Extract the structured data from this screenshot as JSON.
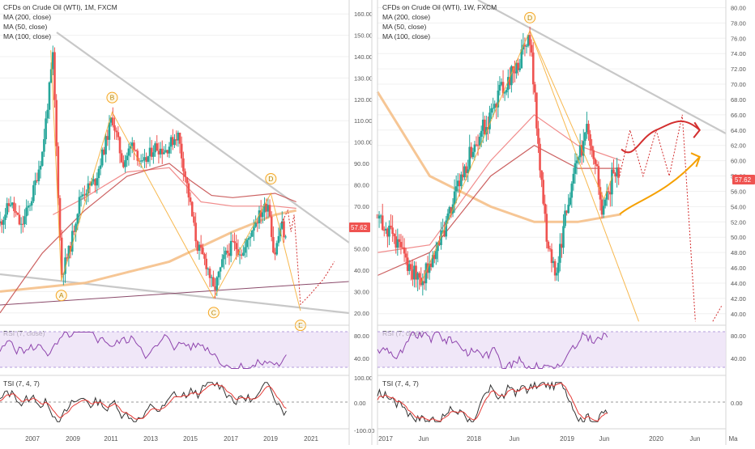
{
  "colors": {
    "bull": "#26a69a",
    "bear": "#ef5350",
    "ma200": "#f5c08a",
    "ma50": "#f08080",
    "ma100": "#c75050",
    "trend": "#c8c8c8",
    "wave": "#f5a623",
    "rsi": "#8e44ad",
    "rsi_band": "#e9ddf5",
    "tsi": "#333333",
    "tsi_signal": "#e53935",
    "price_badge": "#ef5350",
    "proj_red": "#d32f2f",
    "proj_orange": "#f5a000",
    "axis_text": "#555555",
    "grid": "#f0f0f0"
  },
  "left_panel": {
    "legend": {
      "title": "CFDs on Crude Oil (WTI), 1M, FXCM",
      "ma1": "MA (200, close)",
      "ma2": "MA (50, close)",
      "ma3": "MA (100, close)"
    },
    "rsi_label": "RSI (7, close)",
    "tsi_label": "TSI (7, 4, 7)",
    "price_badge": "57.62"
  },
  "right_panel": {
    "legend": {
      "title": "CFDs on Crude Oil (WTI), 1W, FXCM",
      "ma1": "MA (200, close)",
      "ma2": "MA (50, close)",
      "ma3": "MA (100, close)"
    },
    "rsi_label": "RSI (7, close)",
    "tsi_label": "TSI (7, 4, 7)",
    "price_badge": "57.62"
  },
  "chart_data": [
    {
      "type": "candlestick",
      "title": "CFDs on Crude Oil (WTI), 1M, FXCM",
      "ylim": [
        15,
        165
      ],
      "y_ticks": [
        "20.00",
        "30.00",
        "40.00",
        "50.00",
        "60.00",
        "70.00",
        "80.00",
        "90.00",
        "100.00",
        "110.00",
        "120.00",
        "130.00",
        "140.00",
        "150.00",
        "160.00"
      ],
      "x_ticks": [
        "2007",
        "2009",
        "2011",
        "2013",
        "2015",
        "2017",
        "2019",
        "2021"
      ],
      "x_range": [
        2006.0,
        2022.5
      ],
      "wave_points": [
        {
          "label": "A",
          "x": 2008.9,
          "y": 35
        },
        {
          "label": "B",
          "x": 2011.3,
          "y": 114
        },
        {
          "label": "C",
          "x": 2016.1,
          "y": 27
        },
        {
          "label": "D",
          "x": 2018.8,
          "y": 76
        },
        {
          "label": "E",
          "x": 2020.2,
          "y": 21
        }
      ],
      "rsi_ticks": [
        "80.00",
        "40.00"
      ],
      "tsi_ticks": [
        "100.00",
        "0.00",
        "-100.00"
      ],
      "series": [
        {
          "name": "MA (200, close)",
          "points": [
            [
              2006.0,
              30
            ],
            [
              2010,
              34
            ],
            [
              2014,
              44
            ],
            [
              2017,
              58
            ],
            [
              2019,
              66
            ],
            [
              2020,
              68
            ]
          ]
        },
        {
          "name": "MA (50, close)",
          "points": [
            [
              2008.5,
              66
            ],
            [
              2010,
              74
            ],
            [
              2012,
              86
            ],
            [
              2014,
              88
            ],
            [
              2015.5,
              72
            ],
            [
              2017,
              70
            ],
            [
              2019,
              70
            ],
            [
              2020,
              69
            ]
          ]
        },
        {
          "name": "MA (100, close)",
          "points": [
            [
              2006,
              20
            ],
            [
              2008,
              48
            ],
            [
              2010,
              68
            ],
            [
              2012,
              84
            ],
            [
              2014,
              90
            ],
            [
              2015,
              82
            ],
            [
              2016,
              75
            ],
            [
              2017,
              74
            ],
            [
              2019,
              76
            ],
            [
              2020,
              72
            ]
          ]
        }
      ]
    },
    {
      "type": "candlestick",
      "title": "CFDs on Crude Oil (WTI), 1W, FXCM",
      "ylim": [
        38.5,
        81
      ],
      "y_ticks": [
        "40.00",
        "42.00",
        "44.00",
        "46.00",
        "48.00",
        "50.00",
        "52.00",
        "54.00",
        "56.00",
        "58.00",
        "60.00",
        "62.00",
        "64.00",
        "66.00",
        "68.00",
        "70.00",
        "72.00",
        "74.00",
        "76.00",
        "78.00",
        "80.00"
      ],
      "x_ticks": [
        "2017",
        "Jun",
        "2018",
        "Jun",
        "2019",
        "Jun",
        "2020",
        "Jun",
        "Ma"
      ],
      "x_range": [
        2017.0,
        2021.0
      ],
      "wave_points": [
        {
          "label": "D",
          "x": 2018.75,
          "y": 77
        }
      ],
      "rsi_ticks": [
        "80.00",
        "40.00"
      ],
      "tsi_ticks": [
        "0.00"
      ],
      "series": [
        {
          "name": "MA (200, close)",
          "points": [
            [
              2017.0,
              69
            ],
            [
              2017.6,
              58
            ],
            [
              2018.3,
              54
            ],
            [
              2018.8,
              52
            ],
            [
              2019.3,
              52
            ],
            [
              2019.8,
              53
            ]
          ]
        },
        {
          "name": "MA (50, close)",
          "points": [
            [
              2017.0,
              48
            ],
            [
              2017.6,
              49
            ],
            [
              2018.3,
              60
            ],
            [
              2018.8,
              66
            ],
            [
              2019.3,
              62
            ],
            [
              2019.8,
              60
            ]
          ]
        },
        {
          "name": "MA (100, close)",
          "points": [
            [
              2017.0,
              45
            ],
            [
              2017.6,
              48
            ],
            [
              2018.3,
              58
            ],
            [
              2018.8,
              62
            ],
            [
              2019.3,
              59
            ],
            [
              2019.8,
              59
            ]
          ]
        }
      ]
    }
  ]
}
